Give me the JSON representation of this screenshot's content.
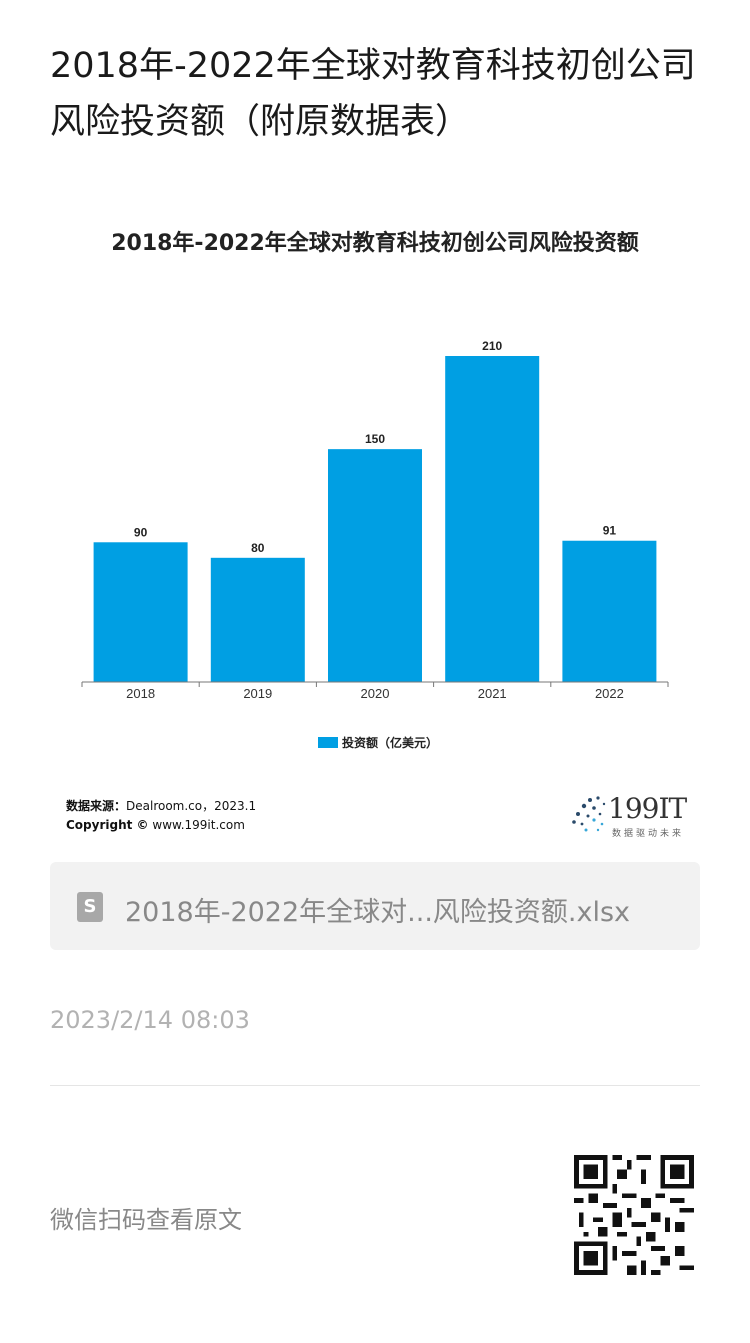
{
  "article": {
    "title": "2018年-2022年全球对教育科技初创公司风险投资额（附原数据表）"
  },
  "chart": {
    "title": "2018年-2022年全球对教育科技初创公司风险投资额",
    "source_label": "数据来源：",
    "source_value": "Dealroom.co，2023.1",
    "copyright_label": "Copyright ©",
    "copyright_value": "www.199it.com",
    "logo_text": "199IT",
    "logo_sub": "数据驱动未来",
    "bar_color": "#009fe3"
  },
  "chart_data": {
    "type": "bar",
    "title": "2018年-2022年全球对教育科技初创公司风险投资额",
    "categories": [
      "2018",
      "2019",
      "2020",
      "2021",
      "2022"
    ],
    "series": [
      {
        "name": "投资额（亿美元）",
        "values": [
          90,
          80,
          150,
          210,
          91
        ]
      }
    ],
    "data_labels": [
      "90",
      "80",
      "150",
      "210",
      "91"
    ],
    "legend_position": "bottom",
    "grid": false,
    "ylim": [
      0,
      210
    ]
  },
  "attachment": {
    "icon": "spreadsheet-file-icon",
    "icon_glyph": "S",
    "file_name": "2018年-2022年全球对...风险投资额.xlsx"
  },
  "meta": {
    "timestamp": "2023/2/14 08:03",
    "read_original": "微信扫码查看原文",
    "qr_icon": "qr-code-icon"
  }
}
